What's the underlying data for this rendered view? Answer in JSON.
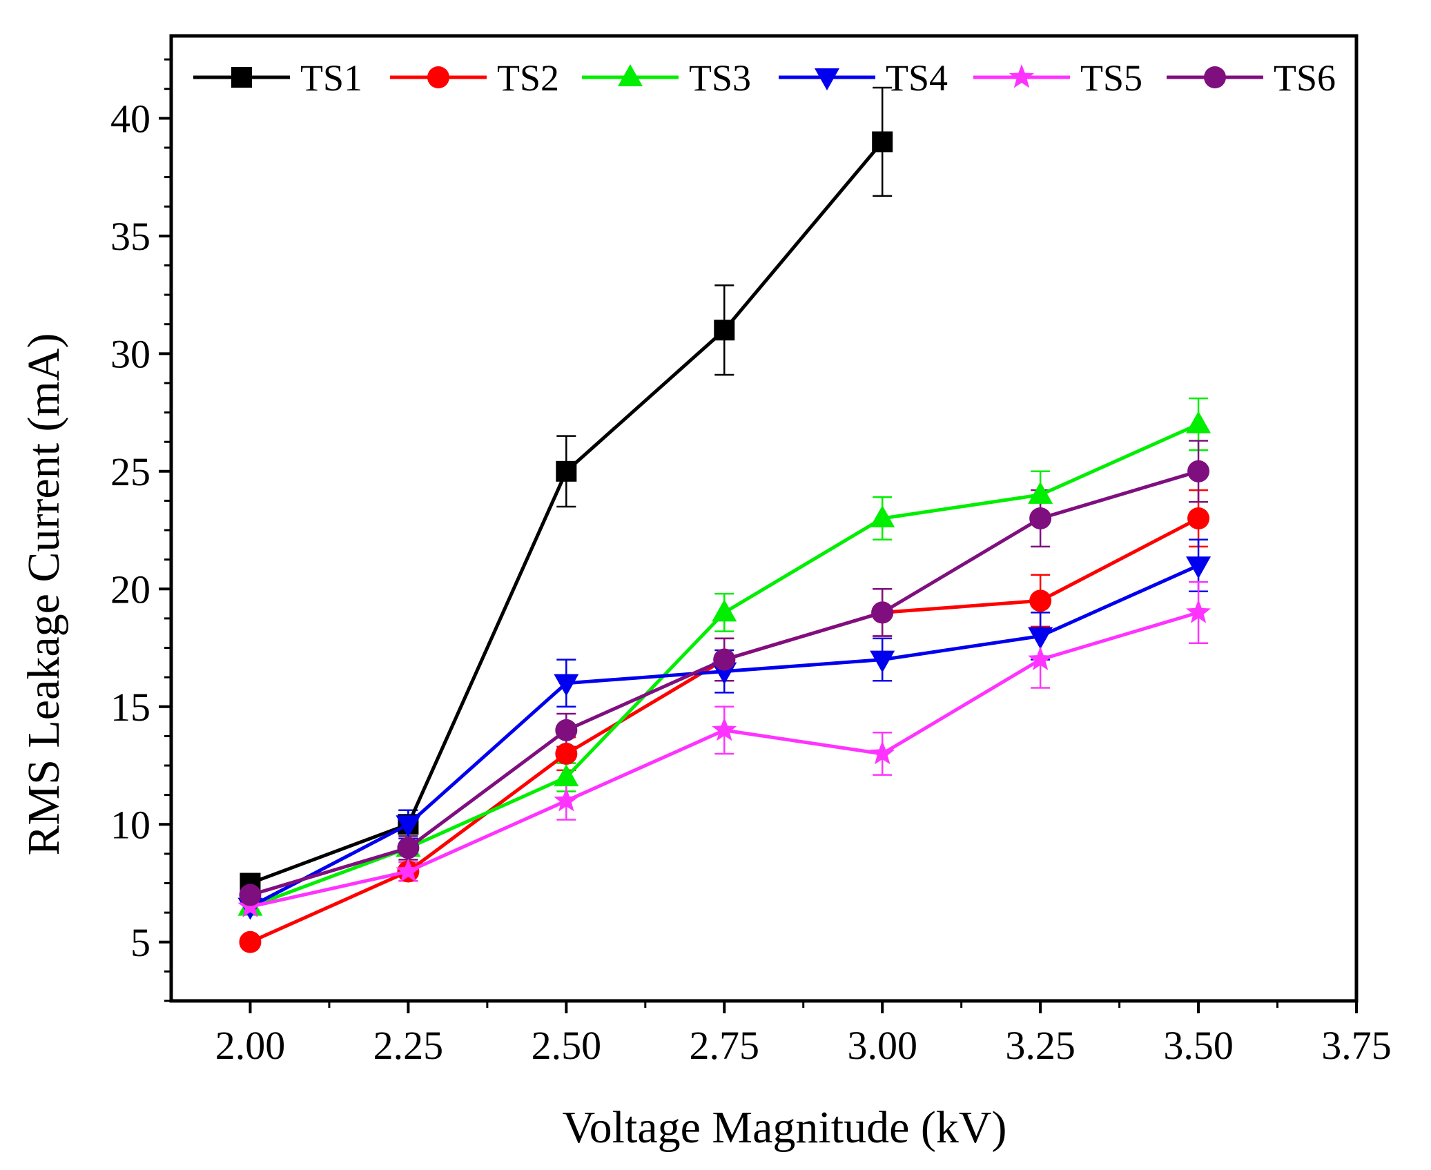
{
  "chart_data": {
    "type": "line",
    "title": "",
    "xlabel": "Voltage Magnitude (kV)",
    "ylabel": "RMS Leakage Current (mA)",
    "xlim": [
      1.875,
      3.75
    ],
    "ylim": [
      2.5,
      43.5
    ],
    "xticks": [
      "2.00",
      "2.25",
      "2.50",
      "2.75",
      "3.00",
      "3.25",
      "3.50",
      "3.75"
    ],
    "yticks": [
      "5",
      "10",
      "15",
      "20",
      "25",
      "30",
      "35",
      "40"
    ],
    "legend_position": "top",
    "grid": false,
    "series": [
      {
        "name": "TS1",
        "color": "#000000",
        "marker": "square",
        "x": [
          2.0,
          2.25,
          2.5,
          2.75,
          3.0
        ],
        "y": [
          7.5,
          10,
          25,
          31,
          39
        ],
        "err": [
          0.4,
          0.6,
          1.5,
          1.9,
          2.3
        ]
      },
      {
        "name": "TS2",
        "color": "#ff0000",
        "marker": "circle",
        "x": [
          2.0,
          2.25,
          2.5,
          2.75,
          3.0,
          3.25,
          3.5
        ],
        "y": [
          5,
          8,
          13,
          17,
          19,
          19.5,
          23
        ],
        "err": [
          0.2,
          0.4,
          0.7,
          0.9,
          1.0,
          1.1,
          1.2
        ]
      },
      {
        "name": "TS3",
        "color": "#00ee00",
        "marker": "triangle-up",
        "x": [
          2.0,
          2.25,
          2.5,
          2.75,
          3.0,
          3.25,
          3.5
        ],
        "y": [
          6.5,
          9,
          12,
          19,
          23,
          24,
          27
        ],
        "err": [
          0.3,
          0.5,
          0.6,
          0.8,
          0.9,
          1.0,
          1.1
        ]
      },
      {
        "name": "TS4",
        "color": "#0000ee",
        "marker": "triangle-down",
        "x": [
          2.0,
          2.25,
          2.5,
          2.75,
          3.0,
          3.25,
          3.5
        ],
        "y": [
          6.5,
          10,
          16,
          16.5,
          17,
          18,
          21
        ],
        "err": [
          0.3,
          0.6,
          1.0,
          0.9,
          0.9,
          1.0,
          1.1
        ]
      },
      {
        "name": "TS5",
        "color": "#ff33ff",
        "marker": "star",
        "x": [
          2.0,
          2.25,
          2.5,
          2.75,
          3.0,
          3.25,
          3.5
        ],
        "y": [
          6.5,
          8,
          11,
          14,
          13,
          17,
          19
        ],
        "err": [
          0.3,
          0.4,
          0.8,
          1.0,
          0.9,
          1.2,
          1.3
        ]
      },
      {
        "name": "TS6",
        "color": "#7f0f7f",
        "marker": "circle",
        "x": [
          2.0,
          2.25,
          2.5,
          2.75,
          3.0,
          3.25,
          3.5
        ],
        "y": [
          7,
          9,
          14,
          17,
          19,
          23,
          25
        ],
        "err": [
          0.3,
          0.5,
          0.7,
          0.9,
          1.0,
          1.2,
          1.3
        ]
      }
    ]
  }
}
